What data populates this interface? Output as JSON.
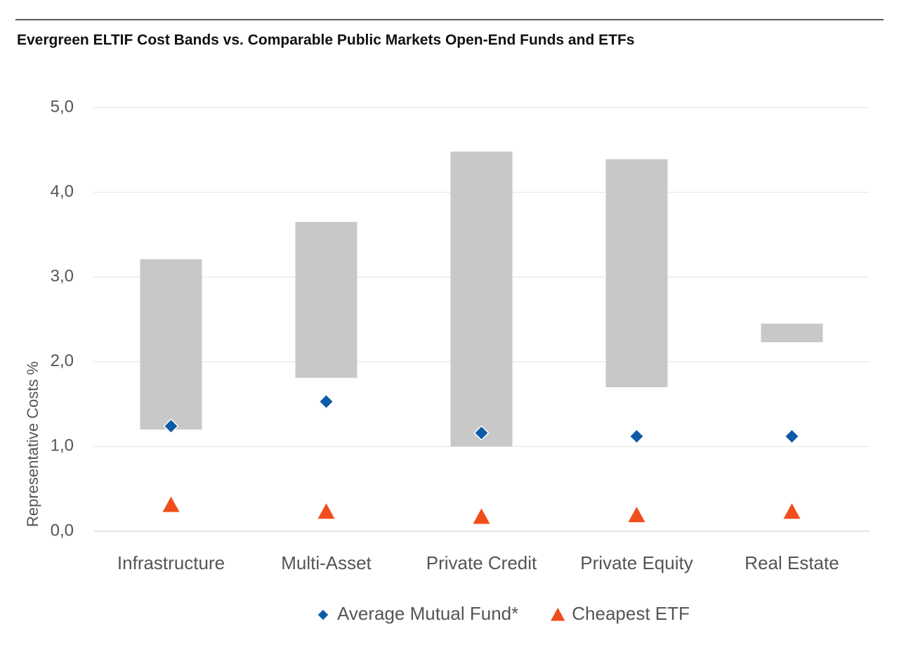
{
  "chart_data": {
    "type": "floating-bar",
    "title": "Evergreen ELTIF Cost Bands vs. Comparable Public Markets Open-End Funds and ETFs",
    "y_label": "Representative Costs %",
    "categories": [
      "Infrastructure",
      "Multi-Asset",
      "Private Credit",
      "Private Equity",
      "Real Estate"
    ],
    "bands": {
      "color": "#c8c8c8",
      "low": [
        1.2,
        1.81,
        1.0,
        1.7,
        2.23
      ],
      "high": [
        3.21,
        3.65,
        4.48,
        4.39,
        2.45
      ]
    },
    "series": [
      {
        "name": "Average Mutual Fund*",
        "color": "#0d5aa7",
        "marker": "diamond",
        "values": [
          1.24,
          1.53,
          1.16,
          1.12,
          1.12
        ]
      },
      {
        "name": "Cheapest ETF",
        "color": "#f04e1d",
        "marker": "triangle",
        "values": [
          0.31,
          0.23,
          0.17,
          0.19,
          0.23
        ]
      }
    ],
    "ylim": [
      0,
      5
    ],
    "yticks": [
      {
        "value": 0,
        "label": "0,0"
      },
      {
        "value": 1,
        "label": "1,0"
      },
      {
        "value": 2,
        "label": "2,0"
      },
      {
        "value": 3,
        "label": "3,0"
      },
      {
        "value": 4,
        "label": "4,0"
      },
      {
        "value": 5,
        "label": "5,0"
      }
    ],
    "grid": true,
    "legend": "bottom"
  }
}
